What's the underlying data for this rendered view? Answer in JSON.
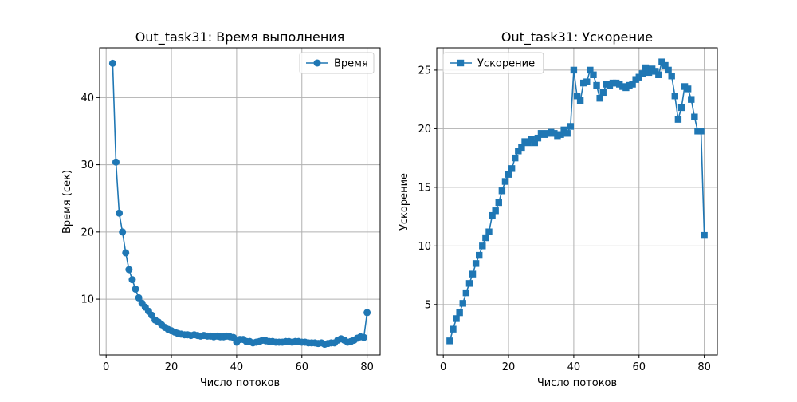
{
  "chart_data": [
    {
      "type": "line",
      "title": "Out_task31: Время выполнения",
      "xlabel": "Число потоков",
      "ylabel": "Время (сек)",
      "xlim": [
        -2,
        84
      ],
      "ylim": [
        1.7,
        47.4
      ],
      "xticks": [
        0,
        20,
        40,
        60,
        80
      ],
      "yticks": [
        10,
        20,
        30,
        40
      ],
      "grid": true,
      "legend_position": "upper right",
      "marker": "circle",
      "color": "#1f77b4",
      "series": [
        {
          "name": "Время",
          "x": [
            2,
            3,
            4,
            5,
            6,
            7,
            8,
            9,
            10,
            11,
            12,
            13,
            14,
            15,
            16,
            17,
            18,
            19,
            20,
            21,
            22,
            23,
            24,
            25,
            26,
            27,
            28,
            29,
            30,
            31,
            32,
            33,
            34,
            35,
            36,
            37,
            38,
            39,
            40,
            41,
            42,
            43,
            44,
            45,
            46,
            47,
            48,
            49,
            50,
            51,
            52,
            53,
            54,
            55,
            56,
            57,
            58,
            59,
            60,
            61,
            62,
            63,
            64,
            65,
            66,
            67,
            68,
            69,
            70,
            71,
            72,
            73,
            74,
            75,
            76,
            77,
            78,
            79,
            80
          ],
          "y": [
            45.1,
            30.4,
            22.8,
            20.0,
            16.9,
            14.4,
            12.9,
            11.5,
            10.2,
            9.4,
            8.8,
            8.2,
            7.6,
            6.9,
            6.6,
            6.2,
            5.8,
            5.5,
            5.3,
            5.1,
            4.9,
            4.8,
            4.7,
            4.7,
            4.6,
            4.7,
            4.6,
            4.5,
            4.6,
            4.5,
            4.5,
            4.4,
            4.5,
            4.4,
            4.4,
            4.5,
            4.4,
            4.3,
            3.6,
            4.0,
            4.0,
            3.7,
            3.7,
            3.5,
            3.6,
            3.7,
            3.9,
            3.8,
            3.7,
            3.7,
            3.6,
            3.6,
            3.6,
            3.7,
            3.7,
            3.6,
            3.7,
            3.7,
            3.6,
            3.6,
            3.5,
            3.5,
            3.5,
            3.4,
            3.5,
            3.3,
            3.4,
            3.5,
            3.5,
            3.9,
            4.1,
            3.9,
            3.6,
            3.7,
            3.9,
            4.2,
            4.4,
            4.3,
            8.0
          ]
        }
      ]
    },
    {
      "type": "line",
      "title": "Out_task31: Ускорение",
      "xlabel": "Число потоков",
      "ylabel": "Ускорение",
      "xlim": [
        -2,
        84
      ],
      "ylim": [
        0.7,
        26.9
      ],
      "xticks": [
        0,
        20,
        40,
        60,
        80
      ],
      "yticks": [
        5,
        10,
        15,
        20,
        25
      ],
      "grid": true,
      "legend_position": "upper left",
      "marker": "square",
      "color": "#1f77b4",
      "series": [
        {
          "name": "Ускорение",
          "x": [
            2,
            3,
            4,
            5,
            6,
            7,
            8,
            9,
            10,
            11,
            12,
            13,
            14,
            15,
            16,
            17,
            18,
            19,
            20,
            21,
            22,
            23,
            24,
            25,
            26,
            27,
            28,
            29,
            30,
            31,
            32,
            33,
            34,
            35,
            36,
            37,
            38,
            39,
            40,
            41,
            42,
            43,
            44,
            45,
            46,
            47,
            48,
            49,
            50,
            51,
            52,
            53,
            54,
            55,
            56,
            57,
            58,
            59,
            60,
            61,
            62,
            63,
            64,
            65,
            66,
            67,
            68,
            69,
            70,
            71,
            72,
            73,
            74,
            75,
            76,
            77,
            78,
            79,
            80
          ],
          "y": [
            1.9,
            2.9,
            3.8,
            4.3,
            5.1,
            6.0,
            6.8,
            7.6,
            8.5,
            9.2,
            10.0,
            10.7,
            11.2,
            12.6,
            13.0,
            13.7,
            14.7,
            15.5,
            16.1,
            16.6,
            17.5,
            18.1,
            18.4,
            18.9,
            18.8,
            19.1,
            18.8,
            19.2,
            19.6,
            19.5,
            19.6,
            19.7,
            19.6,
            19.4,
            19.5,
            19.9,
            19.6,
            20.2,
            25.0,
            22.8,
            22.4,
            23.9,
            24.0,
            25.0,
            24.6,
            23.7,
            22.6,
            23.1,
            23.8,
            23.7,
            23.9,
            23.9,
            23.8,
            23.6,
            23.5,
            23.7,
            23.8,
            24.2,
            24.4,
            24.7,
            25.2,
            24.8,
            25.1,
            24.9,
            24.6,
            25.7,
            25.4,
            25.0,
            24.5,
            22.8,
            20.8,
            21.8,
            23.6,
            23.4,
            22.5,
            21.0,
            19.8,
            19.8,
            10.9
          ]
        }
      ]
    }
  ]
}
